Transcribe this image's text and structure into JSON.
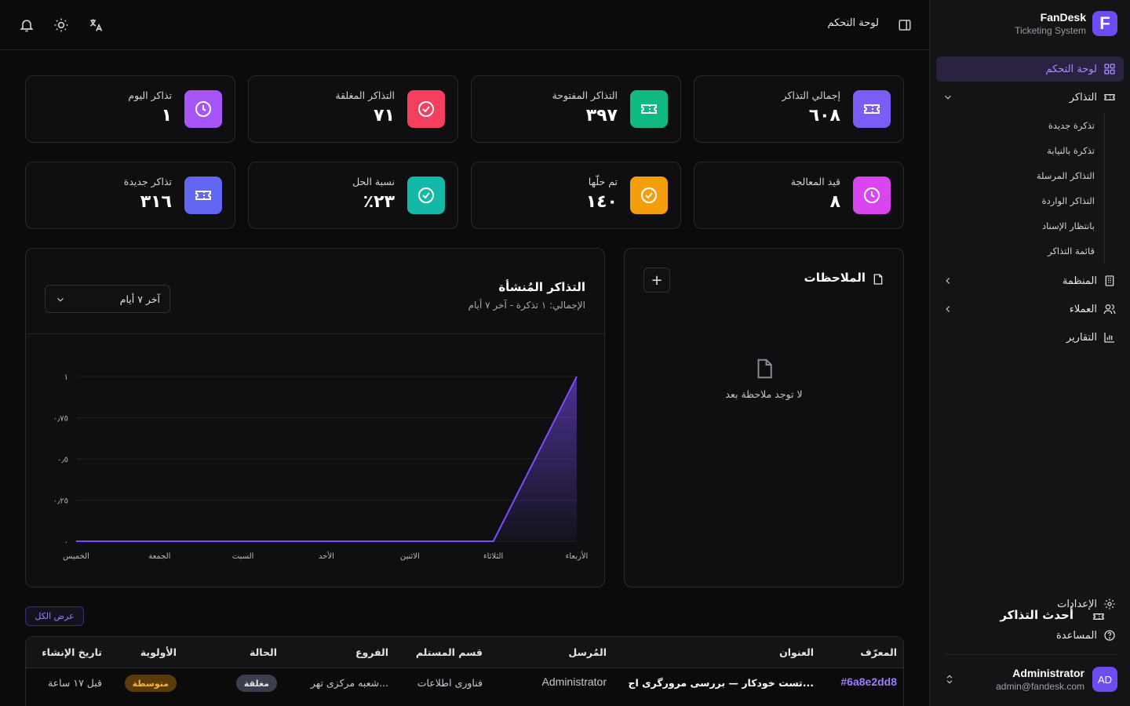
{
  "brand": {
    "name": "FanDesk",
    "subtitle": "Ticketing System",
    "logo_letter": "F"
  },
  "sidebar": {
    "items": [
      {
        "label": "لوحة التحكم",
        "icon": "dashboard-grid-icon",
        "active": true
      },
      {
        "label": "التذاكر",
        "icon": "ticket-icon",
        "expanded": true,
        "children": [
          "تذكرة جديدة",
          "تذكرة بالنيابة",
          "التذاكر المرسلة",
          "التذاكر الواردة",
          "بانتظار الإسناد",
          "قائمة التذاكر"
        ]
      },
      {
        "label": "المنظمة",
        "icon": "building-icon"
      },
      {
        "label": "العملاء",
        "icon": "users-icon"
      },
      {
        "label": "التقارير",
        "icon": "bar-chart-icon"
      }
    ],
    "bottom": [
      {
        "label": "الإعدادات",
        "icon": "gear-icon"
      },
      {
        "label": "المساعدة",
        "icon": "help-circle-icon"
      }
    ],
    "user": {
      "name": "Administrator",
      "email": "admin@fandesk.com",
      "initials": "AD"
    }
  },
  "header": {
    "title": "لوحة التحكم"
  },
  "stats": [
    {
      "label": "إجمالي التذاكر",
      "value": "٦٠٨",
      "icon": "ticket-icon",
      "color": "#7b5cf5"
    },
    {
      "label": "التذاكر المفتوحة",
      "value": "٣٩٧",
      "icon": "ticket-icon",
      "color": "#10b981"
    },
    {
      "label": "التذاكر المغلقة",
      "value": "٧١",
      "icon": "check-circle-icon",
      "color": "#f43f5e"
    },
    {
      "label": "تذاكر اليوم",
      "value": "١",
      "icon": "clock-icon",
      "color": "#a855f7"
    },
    {
      "label": "قيد المعالجة",
      "value": "٨",
      "icon": "clock-icon",
      "color": "#d946ef"
    },
    {
      "label": "تم حلّها",
      "value": "١٤٠",
      "icon": "check-circle-icon",
      "color": "#f59e0b"
    },
    {
      "label": "نسبة الحل",
      "value": "٪٢٣",
      "icon": "check-circle-icon",
      "color": "#14b8a6"
    },
    {
      "label": "تذاكر جديدة",
      "value": "٣١٦",
      "icon": "ticket-icon",
      "color": "#6366f1"
    }
  ],
  "chart_panel": {
    "title": "التذاكر المُنشأة",
    "subtitle": "الإجمالي: ١ تذكرة - آخر ٧ أيام",
    "range_selected": "آخر ٧ أيام"
  },
  "chart_data": {
    "type": "area",
    "categories": [
      "الخميس",
      "الجمعة",
      "السبت",
      "الأحد",
      "الاثنين",
      "الثلاثاء",
      "الأربعاء"
    ],
    "values": [
      0,
      0,
      0,
      0,
      0,
      0,
      1
    ],
    "y_ticks": [
      "٠",
      "٠٫٢٥",
      "٠٫٥",
      "٠٫٧٥",
      "١"
    ],
    "ylim": [
      0,
      1
    ],
    "grid": true,
    "color": "#7c4dff"
  },
  "notes": {
    "title": "الملاحظات",
    "empty_text": "لا توجد ملاحظة بعد",
    "add_label": "+"
  },
  "tickets": {
    "title": "أحدث التذاكر",
    "view_all": "عرض الكل",
    "columns": [
      "المعرّف",
      "العنوان",
      "المُرسل",
      "قسم المستلم",
      "الفروع",
      "الحالة",
      "الأولوية",
      "تاريخ الإنشاء"
    ],
    "rows": [
      {
        "id": "#6a8e2dd8",
        "title": "تست خودکار — بررسی مرورگری اج...",
        "sender": "Administrator",
        "department": "فناوری اطلاعات",
        "branch": "شعبه مرکزی تهر...",
        "status": "مغلقة",
        "priority": "متوسطة",
        "created": "قبل ١٧ ساعة"
      }
    ]
  }
}
